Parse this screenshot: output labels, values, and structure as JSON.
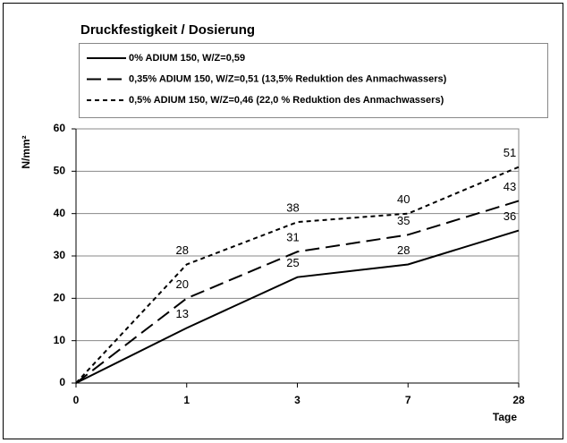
{
  "chart_data": {
    "type": "line",
    "title": "Druckfestigkeit / Dosierung",
    "y_label": "N/mm²",
    "x_label": "Tage",
    "categories": [
      "0",
      "1",
      "3",
      "7",
      "28"
    ],
    "series": [
      {
        "name": "0% ADIUM 150, W/Z=0,59",
        "color": "#000000",
        "dash": "none",
        "values": [
          0,
          13,
          25,
          28,
          36
        ]
      },
      {
        "name": "0,35% ADIUM 150, W/Z=0,51 (13,5% Reduktion des Anmachwassers)",
        "color": "#000000",
        "dash": "16,7",
        "values": [
          0,
          20,
          31,
          35,
          43
        ]
      },
      {
        "name": "0,5% ADIUM 150, W/Z=0,46 (22,0 % Reduktion des Anmachwassers)",
        "color": "#000000",
        "dash": "5,4",
        "values": [
          0,
          28,
          38,
          40,
          51
        ]
      }
    ],
    "ylim": [
      0,
      60
    ],
    "yticks": [
      0,
      10,
      20,
      30,
      40,
      50,
      60
    ],
    "grid": true,
    "data_labels": true,
    "legend": "top"
  }
}
